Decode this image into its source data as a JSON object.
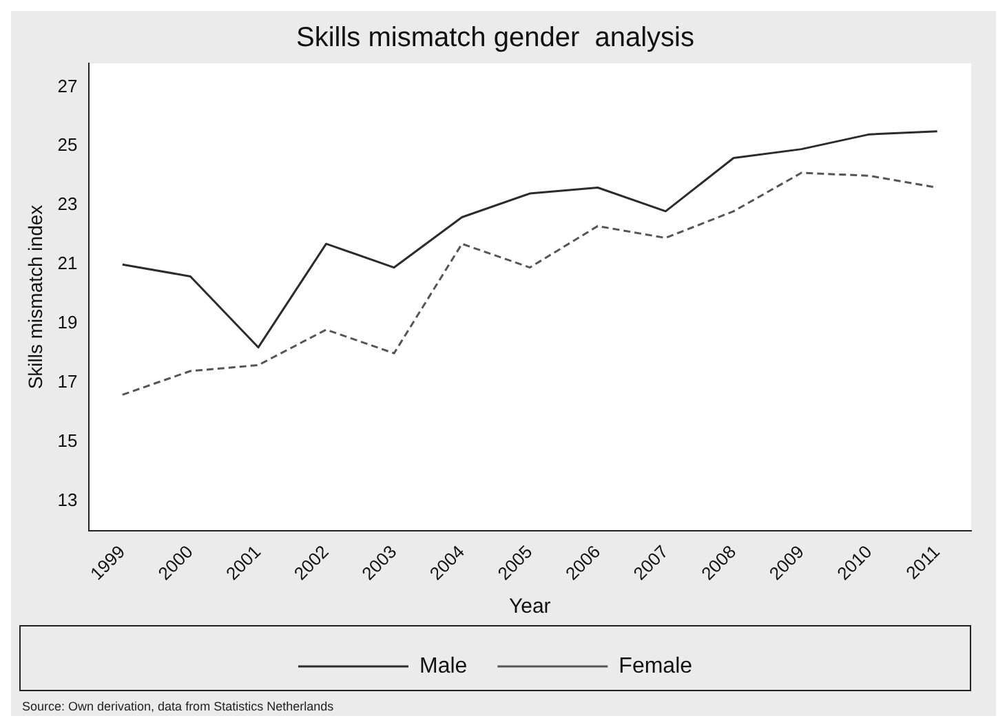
{
  "chart_data": {
    "type": "line",
    "title": "Skills mismatch gender  analysis",
    "xlabel": "Year",
    "ylabel": "Skills mismatch index",
    "categories": [
      "1999",
      "2000",
      "2001",
      "2002",
      "2003",
      "2004",
      "2005",
      "2006",
      "2007",
      "2008",
      "2009",
      "2010",
      "2011"
    ],
    "series": [
      {
        "name": "Male",
        "color": "#2b2b2b",
        "line_style": "solid",
        "values": [
          21.0,
          20.6,
          18.2,
          21.7,
          20.9,
          22.6,
          23.4,
          23.6,
          22.8,
          24.6,
          24.9,
          25.4,
          25.5
        ]
      },
      {
        "name": "Female",
        "color": "#555555",
        "line_style": "dashed",
        "values": [
          16.6,
          17.4,
          17.6,
          18.8,
          18.0,
          21.7,
          20.9,
          22.3,
          21.9,
          22.8,
          24.1,
          24.0,
          23.6
        ]
      }
    ],
    "ylim": [
      12,
      27.8
    ],
    "yticks": [
      13,
      15,
      17,
      19,
      21,
      23,
      25,
      27
    ],
    "grid": false,
    "legend": "bottom",
    "marker": "none",
    "annotations": [
      "Source: Own derivation, data from Statistics Netherlands"
    ]
  }
}
